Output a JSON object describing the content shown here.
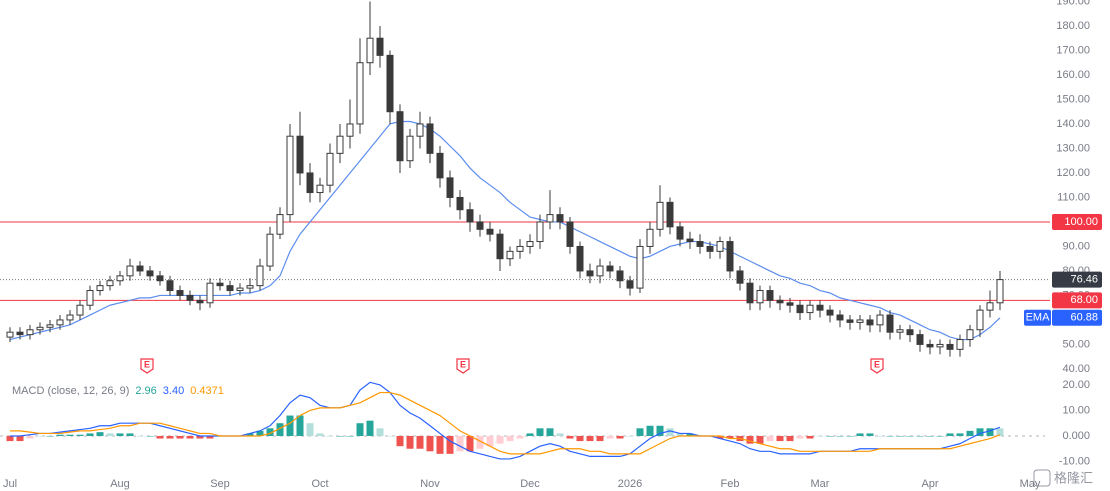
{
  "chart_data": [
    {
      "type": "candlestick",
      "categories": [
        "Jul",
        null,
        null,
        null,
        null,
        null,
        null,
        null,
        null,
        null,
        null,
        "Aug",
        null,
        null,
        null,
        null,
        null,
        null,
        null,
        null,
        null,
        "Sep",
        null,
        null,
        null,
        null,
        null,
        null,
        null,
        null,
        null,
        "Oct",
        null,
        null,
        null,
        null,
        null,
        null,
        null,
        null,
        null,
        null,
        "Nov",
        null,
        null,
        null,
        null,
        null,
        null,
        null,
        null,
        null,
        "Dec",
        null,
        null,
        null,
        null,
        null,
        null,
        null,
        null,
        null,
        "2026",
        null,
        null,
        null,
        null,
        null,
        null,
        null,
        null,
        null,
        "Feb",
        null,
        null,
        null,
        null,
        null,
        null,
        null,
        null,
        "Mar",
        null,
        null,
        null,
        null,
        null,
        null,
        null,
        null,
        null,
        null,
        "Apr",
        null,
        null,
        null,
        null,
        null,
        null,
        null,
        null,
        null,
        "May",
        null
      ],
      "open": [
        53,
        55,
        54,
        56,
        57,
        58,
        60,
        62,
        66,
        72,
        74,
        76,
        78,
        82,
        80,
        78,
        76,
        72,
        70,
        68,
        67,
        75,
        74,
        72,
        73,
        74,
        82,
        95,
        103,
        135,
        120,
        112,
        115,
        128,
        135,
        140,
        165,
        175,
        168,
        145,
        125,
        135,
        140,
        128,
        118,
        110,
        105,
        100,
        97,
        95,
        85,
        88,
        90,
        92,
        100,
        103,
        100,
        90,
        80,
        78,
        82,
        80,
        76,
        73,
        90,
        97,
        108,
        98,
        93,
        92,
        90,
        88,
        92,
        80,
        75,
        67,
        72,
        68,
        67,
        66,
        63,
        66,
        64,
        62,
        60,
        59,
        60,
        58,
        62,
        55,
        56,
        54,
        50,
        49,
        50,
        48,
        52,
        56,
        64,
        67,
        null,
        null,
        null,
        null
      ],
      "high": [
        57,
        57,
        58,
        59,
        60,
        62,
        64,
        68,
        74,
        76,
        78,
        80,
        85,
        84,
        82,
        80,
        78,
        74,
        72,
        70,
        77,
        77,
        76,
        75,
        77,
        85,
        98,
        106,
        140,
        145,
        124,
        118,
        132,
        140,
        150,
        175,
        190,
        180,
        170,
        148,
        138,
        145,
        143,
        131,
        121,
        113,
        108,
        103,
        100,
        97,
        90,
        93,
        95,
        103,
        113,
        106,
        102,
        92,
        83,
        85,
        84,
        82,
        78,
        93,
        100,
        115,
        110,
        100,
        96,
        95,
        92,
        94,
        94,
        82,
        77,
        74,
        74,
        70,
        69,
        68,
        68,
        68,
        66,
        64,
        62,
        62,
        62,
        64,
        64,
        58,
        58,
        56,
        52,
        52,
        52,
        54,
        58,
        66,
        72,
        80,
        null,
        null,
        null,
        null
      ],
      "low": [
        51,
        52,
        52,
        54,
        55,
        56,
        58,
        60,
        64,
        70,
        72,
        74,
        76,
        78,
        76,
        74,
        70,
        68,
        66,
        64,
        65,
        72,
        70,
        70,
        71,
        72,
        80,
        93,
        100,
        115,
        108,
        108,
        112,
        124,
        130,
        136,
        160,
        163,
        140,
        120,
        122,
        130,
        124,
        114,
        106,
        101,
        96,
        94,
        92,
        80,
        82,
        85,
        87,
        89,
        97,
        97,
        87,
        77,
        75,
        75,
        77,
        73,
        70,
        71,
        87,
        94,
        95,
        90,
        89,
        87,
        85,
        85,
        77,
        72,
        64,
        64,
        65,
        64,
        63,
        60,
        60,
        61,
        59,
        57,
        56,
        56,
        55,
        55,
        52,
        52,
        51,
        47,
        46,
        46,
        45,
        45,
        49,
        53,
        61,
        64,
        null,
        null,
        null,
        null
      ],
      "close": [
        55,
        54,
        56,
        57,
        58,
        60,
        62,
        66,
        72,
        74,
        76,
        78,
        82,
        80,
        78,
        76,
        72,
        70,
        68,
        67,
        75,
        74,
        72,
        73,
        74,
        82,
        95,
        103,
        135,
        120,
        112,
        115,
        128,
        135,
        140,
        165,
        175,
        168,
        145,
        125,
        135,
        140,
        128,
        118,
        110,
        105,
        100,
        97,
        95,
        85,
        88,
        90,
        92,
        100,
        103,
        100,
        90,
        80,
        78,
        82,
        80,
        76,
        73,
        90,
        97,
        108,
        98,
        93,
        92,
        90,
        88,
        92,
        80,
        75,
        67,
        72,
        68,
        67,
        66,
        63,
        66,
        64,
        62,
        60,
        59,
        60,
        58,
        62,
        55,
        56,
        54,
        50,
        49,
        50,
        48,
        52,
        56,
        64,
        67,
        76.46,
        null,
        null,
        null,
        null
      ],
      "up_color": "#ffffff",
      "down_color": "#3a3a3a",
      "wick_color": "#3a3a3a",
      "ema": {
        "name": "EMA",
        "color": "#5b8def",
        "values": [
          52,
          53,
          54,
          55,
          56,
          57,
          58,
          60,
          62,
          64,
          66,
          67,
          68,
          69,
          69,
          70,
          70,
          70,
          70,
          70,
          70,
          70,
          70,
          71,
          71,
          72,
          74,
          78,
          88,
          95,
          100,
          105,
          110,
          115,
          120,
          125,
          130,
          135,
          140,
          141,
          141,
          140,
          138,
          135,
          131,
          127,
          122,
          118,
          115,
          112,
          108,
          105,
          102,
          101,
          100,
          100,
          98,
          96,
          94,
          92,
          90,
          88,
          86,
          85,
          86,
          88,
          90,
          91,
          92,
          92,
          91,
          90,
          88,
          86,
          84,
          82,
          80,
          78,
          77,
          75,
          74,
          72,
          71,
          69,
          68,
          67,
          66,
          65,
          63,
          62,
          60,
          58,
          56,
          55,
          53,
          52,
          52,
          54,
          57,
          60.88,
          null,
          null,
          null,
          null
        ]
      },
      "hlines": [
        {
          "value": 100,
          "label": "100.00"
        },
        {
          "value": 68,
          "label": "68.00"
        }
      ],
      "hline_color": "#f23645",
      "last_price_color": "#363a45",
      "ylim": [
        36.3,
        190.6
      ],
      "yticks": [
        {
          "value": 40,
          "label": "40.00"
        },
        {
          "value": 50,
          "label": "50.00"
        },
        {
          "value": 60,
          "label": "60.00"
        },
        {
          "value": 70,
          "label": "70.00"
        },
        {
          "value": 80,
          "label": "80.00"
        },
        {
          "value": 90,
          "label": "90.00"
        },
        {
          "value": 100,
          "label": "100.00"
        },
        {
          "value": 110,
          "label": "110.00"
        },
        {
          "value": 120,
          "label": "120.00"
        },
        {
          "value": 130,
          "label": "130.00"
        },
        {
          "value": 140,
          "label": "140.00"
        },
        {
          "value": 150,
          "label": "150.00"
        },
        {
          "value": 160,
          "label": "160.00"
        },
        {
          "value": 170,
          "label": "170.00"
        },
        {
          "value": 180,
          "label": "180.00"
        },
        {
          "value": 190,
          "label": "190.00"
        }
      ],
      "earnings_markers": [
        "E",
        "E",
        "E"
      ],
      "watermark": "格隆汇"
    },
    {
      "type": "macd",
      "title": "MACD (close, 12, 26, 9)",
      "series": [
        {
          "style": "histogram",
          "color": "#26a69a",
          "last_value_label": "2.96",
          "colors": {
            "up_strong": "#26a69a",
            "up_weak": "#b2dfdb",
            "down_strong": "#ef5350",
            "down_weak": "#ffcdd2"
          },
          "values": [
            -2,
            -2,
            -1,
            0,
            0,
            0.5,
            0.5,
            0.5,
            1,
            1.5,
            1,
            1,
            1,
            0,
            0,
            -1,
            -1,
            -1,
            -1,
            -1,
            -1,
            0,
            0,
            0,
            1,
            2,
            3,
            5,
            8,
            8,
            5,
            1,
            0,
            0,
            0,
            5,
            6,
            3,
            0,
            -4,
            -5,
            -5,
            -6,
            -7,
            -7,
            -6,
            -6,
            -5,
            -4,
            -3,
            -2,
            -1,
            1,
            3,
            3,
            1,
            -1,
            -2,
            -2,
            -2,
            -1,
            -1,
            0,
            3,
            4,
            4,
            3,
            1,
            1,
            0,
            0,
            -1,
            -1,
            -2,
            -3,
            -3,
            -2,
            -2,
            -2,
            -1,
            -1,
            0,
            0,
            0,
            0,
            1,
            1,
            0,
            0,
            0,
            0,
            0,
            0,
            0,
            1,
            1,
            2,
            3,
            3,
            2.96,
            null,
            null,
            null,
            null
          ]
        },
        {
          "style": "line",
          "color": "#2962ff",
          "last_value_label": "3.40",
          "values": [
            0,
            0,
            0.5,
            1,
            1,
            1.5,
            2,
            2.5,
            3,
            4,
            4,
            5,
            5,
            5,
            5,
            4,
            3,
            2,
            1,
            0,
            0,
            0,
            0,
            0,
            1,
            2,
            4,
            8,
            13,
            16,
            15,
            12,
            11,
            11,
            12,
            18,
            21,
            20,
            17,
            12,
            9,
            7,
            4,
            1,
            -2,
            -4,
            -6,
            -7,
            -8,
            -9,
            -9,
            -8,
            -6,
            -4,
            -3,
            -4,
            -6,
            -7,
            -8,
            -8,
            -8,
            -8,
            -7,
            -4,
            -1,
            1,
            2,
            1,
            1,
            0,
            0,
            -1,
            -2,
            -3,
            -5,
            -6,
            -6,
            -7,
            -7,
            -7,
            -7,
            -6,
            -6,
            -6,
            -6,
            -5,
            -5,
            -5,
            -5,
            -5,
            -5,
            -5,
            -5,
            -5,
            -4,
            -3,
            -1,
            1,
            2,
            3.4,
            null,
            null,
            null,
            null
          ]
        },
        {
          "style": "line",
          "color": "#ff9800",
          "last_value_label": "0.4371",
          "values": [
            2,
            2,
            1.5,
            1,
            1,
            1,
            1.5,
            2,
            2,
            2.5,
            3,
            4,
            4,
            5,
            5,
            5,
            4,
            3,
            2,
            1,
            1,
            0,
            0,
            0,
            0,
            0,
            1,
            3,
            5,
            8,
            10,
            11,
            11,
            11,
            12,
            13,
            15,
            17,
            17,
            16,
            14,
            12,
            10,
            8,
            5,
            2,
            0,
            -2,
            -4,
            -6,
            -7,
            -7,
            -7,
            -7,
            -6,
            -5,
            -5,
            -5,
            -6,
            -6,
            -7,
            -7,
            -7,
            -7,
            -5,
            -3,
            -1,
            0,
            0,
            0,
            0,
            0,
            -1,
            -1,
            -2,
            -3,
            -4,
            -5,
            -5,
            -6,
            -6,
            -6,
            -6,
            -6,
            -6,
            -6,
            -6,
            -5,
            -5,
            -5,
            -5,
            -5,
            -5,
            -5,
            -5,
            -4,
            -3,
            -2,
            -1,
            0.4371,
            null,
            null,
            null,
            null
          ]
        }
      ],
      "ylim": [
        -14.5,
        22.7
      ],
      "yticks": [
        {
          "value": -10,
          "label": "-10.00"
        },
        {
          "value": 0,
          "label": "0.000"
        },
        {
          "value": 10,
          "label": "10.00"
        },
        {
          "value": 20,
          "label": "20.00"
        }
      ],
      "zero_line": true
    }
  ]
}
